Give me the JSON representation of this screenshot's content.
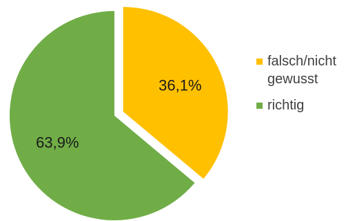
{
  "chart_data": {
    "type": "pie",
    "slices": [
      {
        "label": "falsch/nicht gewusst",
        "value": 36.1,
        "value_label": "36,1%",
        "color": "#FFC000",
        "exploded": true
      },
      {
        "label": "richtig",
        "value": 63.9,
        "value_label": "63,9%",
        "color": "#70AD47",
        "exploded": false
      }
    ],
    "legend_placement": "right"
  },
  "legend": {
    "items": [
      {
        "label": "falsch/nicht gewusst",
        "color": "#FFC000"
      },
      {
        "label": "richtig",
        "color": "#70AD47"
      }
    ]
  }
}
